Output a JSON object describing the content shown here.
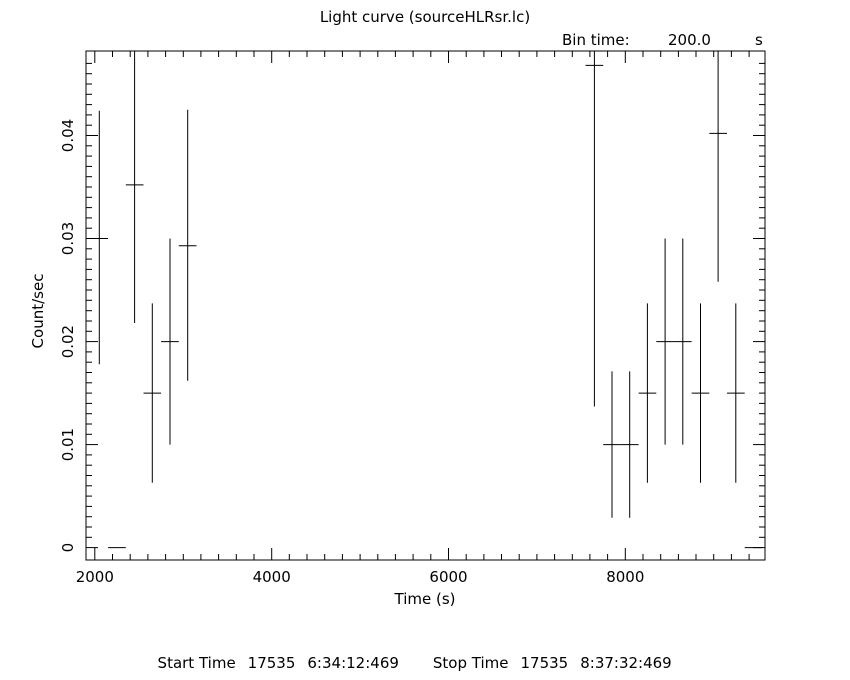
{
  "chart_data": {
    "type": "scatter",
    "title": "Light curve (sourceHLRsr.lc)",
    "bin_time": {
      "label": "Bin time:",
      "value": "200.0",
      "unit": "s"
    },
    "xlabel": "Time (s)",
    "ylabel": "Count/sec",
    "xlim": [
      1900,
      9580
    ],
    "ylim": [
      -0.0012,
      0.0482
    ],
    "xticks": [
      2000,
      4000,
      6000,
      8000
    ],
    "xtick_labels": [
      "2000",
      "4000",
      "6000",
      "8000"
    ],
    "yticks": [
      0,
      0.01,
      0.02,
      0.03,
      0.04
    ],
    "ytick_labels": [
      "0",
      "0.01",
      "0.02",
      "0.03",
      "0.04"
    ],
    "grid": false,
    "legend": "none",
    "x_half_width": 100,
    "series": [
      {
        "points": [
          {
            "x": 2050,
            "y": 0.03,
            "ylo": 0.0178,
            "yhi": 0.0424
          },
          {
            "x": 2250,
            "y": 0.0,
            "ylo": 0.0,
            "yhi": 0.0
          },
          {
            "x": 2450,
            "y": 0.0352,
            "ylo": 0.0218,
            "yhi": 0.0482
          },
          {
            "x": 2650,
            "y": 0.015,
            "ylo": 0.0063,
            "yhi": 0.0237
          },
          {
            "x": 2850,
            "y": 0.02,
            "ylo": 0.01,
            "yhi": 0.03
          },
          {
            "x": 3050,
            "y": 0.0293,
            "ylo": 0.0162,
            "yhi": 0.0425
          },
          {
            "x": 7650,
            "y": 0.0468,
            "ylo": 0.0137,
            "yhi": 0.0482
          },
          {
            "x": 7850,
            "y": 0.01,
            "ylo": 0.0029,
            "yhi": 0.0171
          },
          {
            "x": 8050,
            "y": 0.01,
            "ylo": 0.0029,
            "yhi": 0.0171
          },
          {
            "x": 8250,
            "y": 0.015,
            "ylo": 0.0063,
            "yhi": 0.0237
          },
          {
            "x": 8450,
            "y": 0.02,
            "ylo": 0.01,
            "yhi": 0.03
          },
          {
            "x": 8650,
            "y": 0.02,
            "ylo": 0.01,
            "yhi": 0.03
          },
          {
            "x": 8850,
            "y": 0.015,
            "ylo": 0.0063,
            "yhi": 0.0237
          },
          {
            "x": 9050,
            "y": 0.0402,
            "ylo": 0.0258,
            "yhi": 0.0482
          },
          {
            "x": 9250,
            "y": 0.015,
            "ylo": 0.0063,
            "yhi": 0.0237
          },
          {
            "x": 9450,
            "y": 0.0,
            "ylo": 0.0,
            "yhi": 0.0
          }
        ]
      }
    ]
  },
  "footer": {
    "start_label": "Start Time",
    "start_day": "17535",
    "start_time": "6:34:12:469",
    "stop_label": "Stop Time",
    "stop_day": "17535",
    "stop_time": "8:37:32:469"
  }
}
